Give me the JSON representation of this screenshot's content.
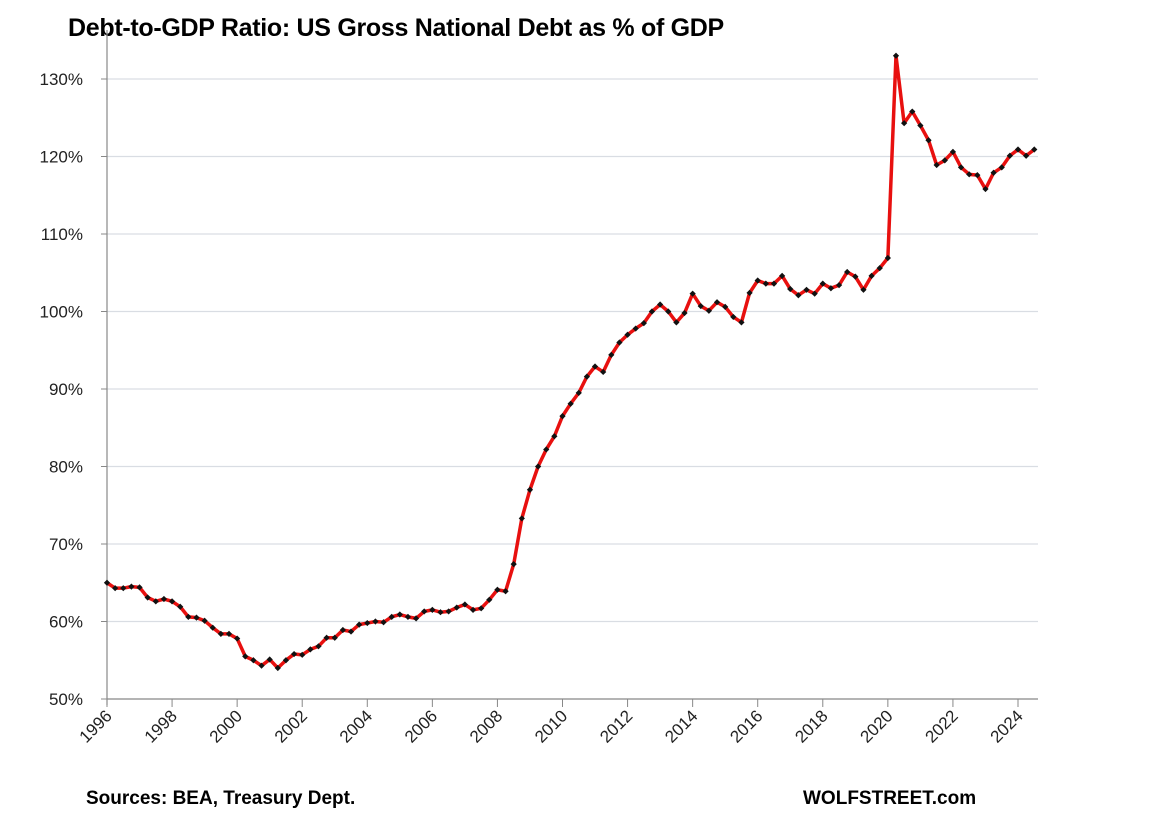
{
  "chart_data": {
    "type": "line",
    "title": "Debt-to-GDP Ratio: US Gross National Debt as % of GDP",
    "xlabel": "",
    "ylabel": "",
    "ylim": [
      50,
      130
    ],
    "xlim": [
      1996,
      2024.6
    ],
    "y_ticks": [
      "50%",
      "60%",
      "70%",
      "80%",
      "90%",
      "100%",
      "110%",
      "120%",
      "130%"
    ],
    "y_tick_values": [
      50,
      60,
      70,
      80,
      90,
      100,
      110,
      120,
      130
    ],
    "x_ticks": [
      "1996",
      "1998",
      "2000",
      "2002",
      "2004",
      "2006",
      "2008",
      "2010",
      "2012",
      "2014",
      "2016",
      "2018",
      "2020",
      "2022",
      "2024"
    ],
    "x_tick_values": [
      1996,
      1998,
      2000,
      2002,
      2004,
      2006,
      2008,
      2010,
      2012,
      2014,
      2016,
      2018,
      2020,
      2022,
      2024
    ],
    "grid": true,
    "legend": "none",
    "series": [
      {
        "name": "Debt-to-GDP",
        "color": "#e8100f",
        "marker_color": "#111111",
        "x_start": 1996,
        "x_step": 0.25,
        "values": [
          65.0,
          64.3,
          64.3,
          64.5,
          64.4,
          63.1,
          62.6,
          62.9,
          62.6,
          61.9,
          60.6,
          60.5,
          60.1,
          59.2,
          58.4,
          58.4,
          57.8,
          55.5,
          55.0,
          54.3,
          55.1,
          54.0,
          55.0,
          55.8,
          55.7,
          56.4,
          56.8,
          57.9,
          57.9,
          58.9,
          58.7,
          59.6,
          59.8,
          60.0,
          59.9,
          60.6,
          60.9,
          60.6,
          60.4,
          61.3,
          61.5,
          61.2,
          61.3,
          61.8,
          62.2,
          61.5,
          61.7,
          62.8,
          64.1,
          63.9,
          67.4,
          73.3,
          77.0,
          80.0,
          82.2,
          83.9,
          86.5,
          88.1,
          89.5,
          91.6,
          92.9,
          92.2,
          94.4,
          96.0,
          97.0,
          97.8,
          98.5,
          100.0,
          100.9,
          100.0,
          98.6,
          99.8,
          102.3,
          100.7,
          100.1,
          101.2,
          100.6,
          99.3,
          98.6,
          102.4,
          104.0,
          103.6,
          103.6,
          104.6,
          102.9,
          102.1,
          102.8,
          102.3,
          103.6,
          103.0,
          103.4,
          105.1,
          104.5,
          102.8,
          104.6,
          105.6,
          106.9,
          133.0,
          124.3,
          125.8,
          124.0,
          122.1,
          118.9,
          119.5,
          120.6,
          118.6,
          117.7,
          117.6,
          115.8,
          117.9,
          118.6,
          120.1,
          120.9,
          120.1,
          120.9
        ]
      }
    ],
    "annotations": {
      "source": "Sources: BEA, Treasury Dept.",
      "brand": "WOLFSTREET.com"
    }
  }
}
